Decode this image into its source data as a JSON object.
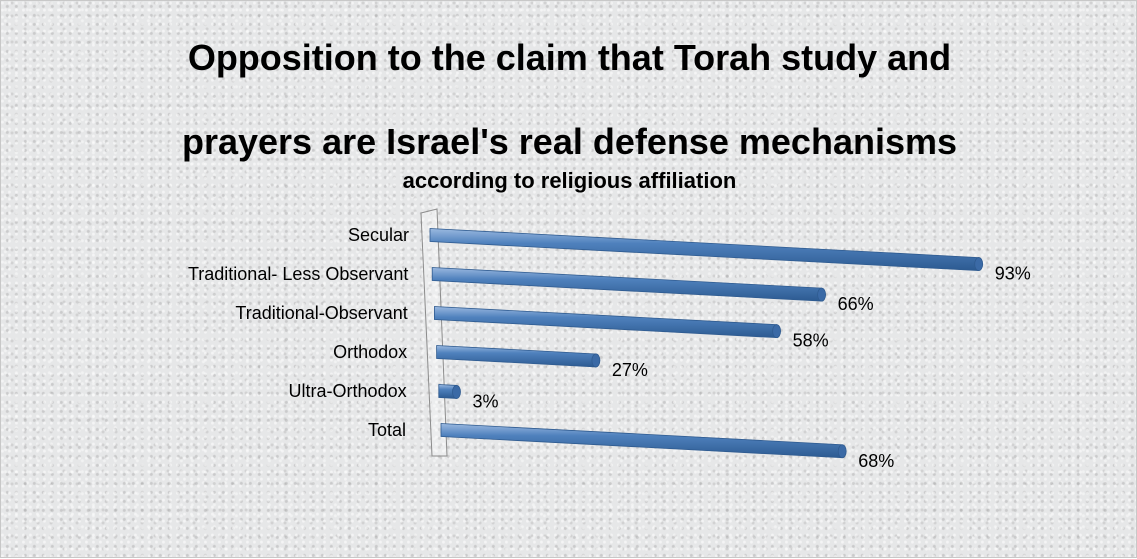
{
  "chart_data": {
    "type": "bar",
    "orientation": "horizontal",
    "title": "Opposition to the claim that Torah study and prayers are Israel's real defense mechanisms",
    "title_lines": [
      "Opposition to the claim that Torah study and",
      "prayers are Israel's real defense mechanisms"
    ],
    "subtitle": "according to religious affiliation",
    "categories": [
      "Secular",
      "Traditional- Less Observant",
      "Traditional-Observant",
      "Orthodox",
      "Ultra-Orthodox",
      "Total"
    ],
    "values": [
      93,
      66,
      58,
      27,
      3,
      68
    ],
    "data_labels": [
      "93%",
      "66%",
      "58%",
      "27%",
      "3%",
      "68%"
    ],
    "value_unit": "%",
    "xlim": [
      0,
      100
    ],
    "grid": false,
    "legend": "none",
    "bar_color": "#4f81bd"
  }
}
